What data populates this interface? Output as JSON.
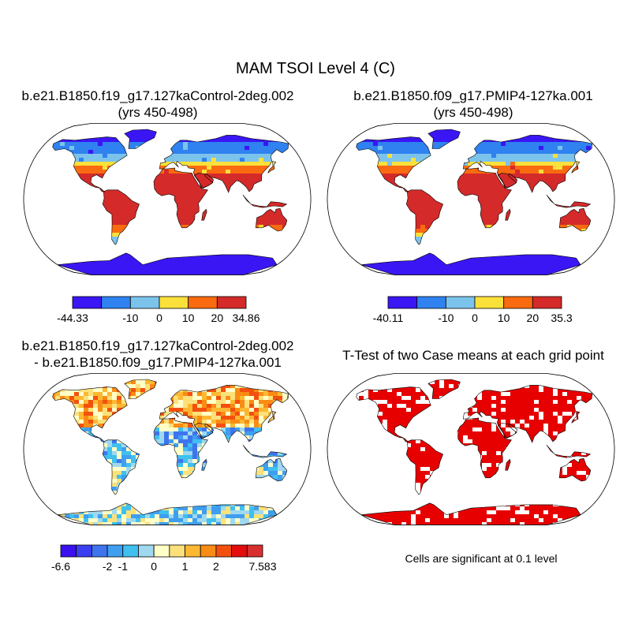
{
  "title": "MAM TSOI Level 4 (C)",
  "panels": {
    "p1": {
      "title_line1": "b.e21.B1850.f19_g17.127kaControl-2deg.002",
      "title_line2": "(yrs 450-498)"
    },
    "p2": {
      "title_line1": "b.e21.B1850.f09_g17.PMIP4-127ka.001",
      "title_line2": "(yrs 450-498)"
    },
    "p3": {
      "title_line1": "b.e21.B1850.f19_g17.127kaControl-2deg.002",
      "title_line2": "- b.e21.B1850.f09_g17.PMIP4-127ka.001"
    },
    "p4": {
      "title_line1": "T-Test of two Case means at each grid point",
      "note": "Cells are significant at 0.1 level"
    }
  },
  "chart_data": [
    {
      "type": "heatmap",
      "title": "b.e21.B1850.f19_g17.127kaControl-2deg.002 (yrs 450-498)",
      "projection": "robinson",
      "colorbar": {
        "colors": [
          "#3b16f5",
          "#2f82ef",
          "#7cc3ec",
          "#f9e03a",
          "#fa6a10",
          "#d42a2a"
        ],
        "labels": [
          "-44.33",
          "-10",
          "0",
          "10",
          "20",
          "34.86"
        ],
        "min": -44.33,
        "max": 34.86
      }
    },
    {
      "type": "heatmap",
      "title": "b.e21.B1850.f09_g17.PMIP4-127ka.001 (yrs 450-498)",
      "projection": "robinson",
      "colorbar": {
        "colors": [
          "#3b16f5",
          "#2f82ef",
          "#7cc3ec",
          "#f9e03a",
          "#fa6a10",
          "#d42a2a"
        ],
        "labels": [
          "-40.11",
          "-10",
          "0",
          "10",
          "20",
          "35.3"
        ],
        "min": -40.11,
        "max": 35.3
      }
    },
    {
      "type": "heatmap",
      "title": "b.e21.B1850.f19_g17.127kaControl-2deg.002 - b.e21.B1850.f09_g17.PMIP4-127ka.001",
      "projection": "robinson",
      "colorbar": {
        "colors": [
          "#3a10ee",
          "#3b3ff2",
          "#3f74ef",
          "#3f9ef0",
          "#3fc0ef",
          "#9fd8ef",
          "#ffffc8",
          "#fce17b",
          "#fdb832",
          "#f98c14",
          "#f3500f",
          "#e40d0d",
          "#d7302e"
        ],
        "labels": [
          "-6.6",
          "-2",
          "-1",
          "0",
          "1",
          "2",
          "7.583"
        ],
        "min": -6.6,
        "max": 7.583
      }
    },
    {
      "type": "heatmap",
      "title": "T-Test of two Case means at each grid point",
      "projection": "robinson",
      "significant_color": "#e60000",
      "significance_level": 0.1
    }
  ]
}
